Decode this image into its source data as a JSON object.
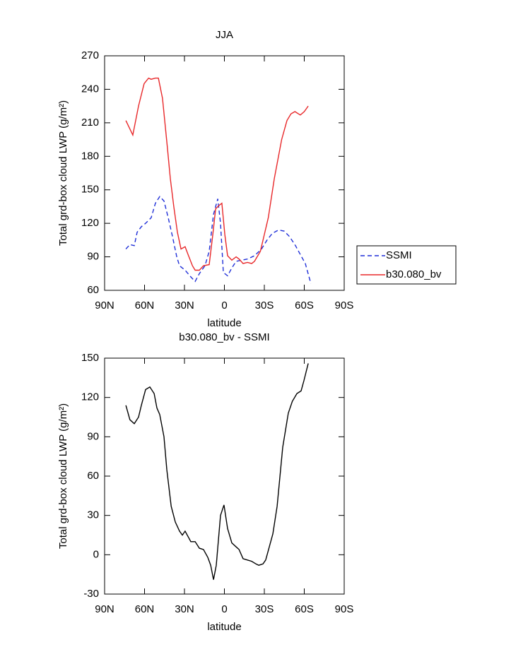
{
  "chart_data": [
    {
      "type": "line",
      "title": "JJA",
      "xlabel": "latitude",
      "ylabel": "Total grd-box cloud LWP (g/m²)",
      "xlim": [
        90,
        -90
      ],
      "xticks": [
        {
          "value": 90,
          "label": "90N"
        },
        {
          "value": 60,
          "label": "60N"
        },
        {
          "value": 30,
          "label": "30N"
        },
        0,
        {
          "value": -30,
          "label": "30S"
        },
        {
          "value": -60,
          "label": "60S"
        },
        {
          "value": -90,
          "label": "90S"
        }
      ],
      "ylim": [
        60,
        270
      ],
      "yticks": [
        60,
        90,
        120,
        150,
        180,
        210,
        240,
        270
      ],
      "legend": "right",
      "series": [
        {
          "name": "SSMI",
          "color": "#1f2fd8",
          "dashed": true,
          "x": [
            74,
            71,
            67.7,
            65.6,
            62.4,
            59.2,
            55,
            51.8,
            48.6,
            45.4,
            42.2,
            39,
            35.8,
            33.7,
            29.5,
            25.2,
            22,
            18.8,
            14.6,
            11.4,
            8.2,
            5,
            2.9,
            0.8,
            -2.4,
            -5.6,
            -8.8,
            -13,
            -17.3,
            -22.6,
            -27.9,
            -32,
            -36,
            -40.6,
            -44.9,
            -49,
            -53.4,
            -56.6,
            -60.8,
            -65
          ],
          "values": [
            97,
            101,
            100,
            112,
            117,
            120,
            125,
            138,
            144,
            140,
            125,
            108,
            90,
            82,
            78,
            72,
            68,
            75,
            82,
            95,
            128,
            142,
            120,
            76,
            73,
            80,
            86,
            87,
            88,
            91,
            97,
            105,
            111,
            114,
            113,
            108,
            100,
            93,
            84,
            66
          ]
        },
        {
          "name": "b30.080_bv",
          "color": "#e8282a",
          "dashed": false,
          "x": [
            74,
            68.8,
            64.5,
            60.3,
            57,
            55,
            51.8,
            49.6,
            46.5,
            43,
            40.6,
            38,
            35.3,
            32.6,
            29.5,
            27.3,
            24,
            22,
            18.8,
            15.7,
            11.4,
            8.7,
            6.6,
            4,
            1.9,
            -0.3,
            -2.4,
            -5.6,
            -8.8,
            -11,
            -14,
            -17.3,
            -20.5,
            -22.6,
            -27,
            -30,
            -33,
            -37.5,
            -43,
            -47,
            -50,
            -53,
            -57,
            -60,
            -63
          ],
          "values": [
            212,
            199,
            225,
            245,
            250,
            249,
            250,
            250,
            232,
            190,
            160,
            135,
            112,
            97,
            99,
            92,
            82,
            78,
            78,
            82,
            83,
            110,
            133,
            136,
            138,
            110,
            91,
            87,
            90,
            88,
            84,
            85,
            84,
            86,
            95,
            110,
            125,
            160,
            195,
            212,
            218,
            220,
            217,
            220,
            225
          ]
        }
      ]
    },
    {
      "type": "line",
      "title": "b30.080_bv  -  SSMI",
      "xlabel": "latitude",
      "ylabel": "Total grd-box cloud LWP (g/m²)",
      "xlim": [
        90,
        -90
      ],
      "xticks": [
        {
          "value": 90,
          "label": "90N"
        },
        {
          "value": 60,
          "label": "60N"
        },
        {
          "value": 30,
          "label": "30N"
        },
        0,
        {
          "value": -30,
          "label": "30S"
        },
        {
          "value": -60,
          "label": "60S"
        },
        {
          "value": -90,
          "label": "90S"
        }
      ],
      "ylim": [
        -30,
        150
      ],
      "yticks": [
        -30,
        0,
        30,
        60,
        90,
        120,
        150
      ],
      "series": [
        {
          "color": "#000000",
          "dashed": false,
          "x": [
            74,
            71,
            67.7,
            64.5,
            62.4,
            59.2,
            56,
            52.8,
            50.7,
            48.6,
            45.4,
            43.3,
            40,
            36.9,
            33.7,
            31.6,
            29.5,
            25.2,
            22,
            18.8,
            15.7,
            12.5,
            10.3,
            8.2,
            6.1,
            2.9,
            0.3,
            -2.4,
            -5.6,
            -8.8,
            -11,
            -14,
            -17.3,
            -20.5,
            -23.7,
            -25.8,
            -29,
            -31,
            -33.2,
            -36.4,
            -39.6,
            -43.8,
            -48,
            -51,
            -54.5,
            -57.6,
            -59.8,
            -63
          ],
          "values": [
            114,
            103,
            100,
            105,
            114,
            126,
            128,
            123,
            112,
            107,
            90,
            65,
            37,
            25,
            18,
            15,
            18,
            10,
            10,
            5,
            4,
            -2,
            -8,
            -19,
            -8,
            30,
            38,
            20,
            9,
            6,
            4,
            -3,
            -4,
            -5,
            -7,
            -8,
            -7,
            -4,
            4,
            16,
            37,
            82,
            108,
            117,
            123,
            125,
            133,
            146
          ]
        }
      ]
    }
  ]
}
